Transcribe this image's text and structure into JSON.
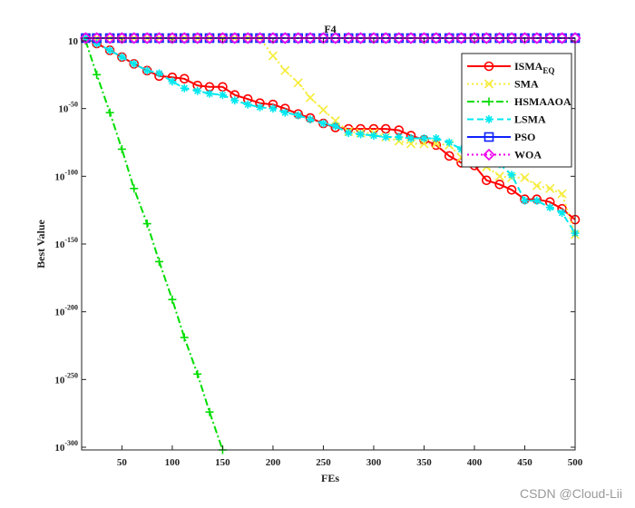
{
  "watermark": "CSDN @Cloud-Lii",
  "chart_data": {
    "type": "line",
    "title": "F4",
    "xlabel": "FEs",
    "ylabel": "Best Value",
    "x_ticks": [
      50,
      100,
      150,
      200,
      250,
      300,
      350,
      400,
      450,
      500
    ],
    "xlim": [
      10,
      500
    ],
    "y_scale": "log10",
    "ylim_exp": [
      -300,
      0
    ],
    "y_ticks": [
      {
        "exp": 0,
        "label": "10"
      },
      {
        "exp": -50,
        "label": "10",
        "sup": "-50"
      },
      {
        "exp": -100,
        "label": "10",
        "sup": "-100"
      },
      {
        "exp": -150,
        "label": "10",
        "sup": "-150"
      },
      {
        "exp": -200,
        "label": "10",
        "sup": "-200"
      },
      {
        "exp": -250,
        "label": "10",
        "sup": "-250"
      },
      {
        "exp": -300,
        "label": "10",
        "sup": "-300"
      }
    ],
    "legend_position": "top-right",
    "series": [
      {
        "name": "ISMA",
        "sub": "EQ",
        "color": "#ff0000",
        "marker": "circle",
        "dash": "solid",
        "x": [
          14,
          25,
          38,
          50,
          62,
          75,
          87,
          100,
          112,
          125,
          137,
          150,
          162,
          175,
          187,
          200,
          212,
          225,
          237,
          250,
          262,
          275,
          287,
          300,
          312,
          325,
          337,
          350,
          362,
          375,
          387,
          400,
          412,
          425,
          437,
          450,
          462,
          475,
          487,
          500
        ],
        "y": [
          2,
          -2,
          -7,
          -12,
          -17,
          -22,
          -26,
          -27,
          -28,
          -33,
          -34,
          -34,
          -40,
          -43,
          -46,
          -47,
          -50,
          -54,
          -57,
          -61,
          -64,
          -65,
          -65,
          -65,
          -65,
          -66,
          -70,
          -73,
          -77,
          -85,
          -90,
          -92,
          -103,
          -106,
          -110,
          -117,
          -117,
          -119,
          -124,
          -132
        ]
      },
      {
        "name": "SMA",
        "color": "#f5ec3a",
        "marker": "x",
        "dash": "dotted",
        "x": [
          14,
          25,
          38,
          50,
          62,
          75,
          87,
          100,
          112,
          125,
          137,
          150,
          162,
          175,
          187,
          200,
          212,
          225,
          237,
          250,
          262,
          275,
          287,
          300,
          312,
          325,
          337,
          350,
          362,
          375,
          387,
          400,
          412,
          425,
          437,
          450,
          462,
          475,
          487,
          500
        ],
        "y": [
          2,
          2,
          2,
          2,
          2,
          2,
          2,
          2,
          2,
          2,
          2,
          2,
          2,
          2,
          2,
          -11,
          -22,
          -31,
          -42,
          -51,
          -59,
          -67,
          -68,
          -68,
          -71,
          -74,
          -76,
          -76,
          -76,
          -77,
          -86,
          -87,
          -93,
          -100,
          -101,
          -101,
          -107,
          -109,
          -113,
          -143
        ]
      },
      {
        "name": "HSMAAOA",
        "color": "#00dd00",
        "marker": "plus",
        "dash": "dashdot",
        "x": [
          14,
          25,
          38,
          50,
          62,
          75,
          87,
          100,
          112,
          125,
          137,
          150
        ],
        "y": [
          0,
          -25,
          -53,
          -80,
          -109,
          -135,
          -163,
          -191,
          -219,
          -246,
          -274,
          -302
        ]
      },
      {
        "name": "LSMA",
        "color": "#00e8f0",
        "marker": "asterisk",
        "dash": "dashed",
        "x": [
          14,
          25,
          38,
          50,
          62,
          75,
          87,
          100,
          112,
          125,
          137,
          150,
          162,
          175,
          187,
          200,
          212,
          225,
          237,
          250,
          262,
          275,
          287,
          300,
          312,
          325,
          337,
          350,
          362,
          375,
          387,
          400,
          412,
          425,
          437,
          450,
          462,
          475,
          487,
          500
        ],
        "y": [
          2,
          -2,
          -7,
          -12,
          -17,
          -22,
          -24,
          -30,
          -35,
          -37,
          -39,
          -40,
          -44,
          -47,
          -49,
          -50,
          -53,
          -55,
          -58,
          -61,
          -63,
          -68,
          -69,
          -70,
          -71,
          -71,
          -72,
          -72,
          -72,
          -75,
          -80,
          -85,
          -88,
          -91,
          -99,
          -118,
          -118,
          -123,
          -127,
          -142
        ]
      },
      {
        "name": "PSO",
        "color": "#1020ff",
        "marker": "square",
        "dash": "solid",
        "x": [
          14,
          25,
          38,
          50,
          62,
          75,
          87,
          100,
          112,
          125,
          137,
          150,
          162,
          175,
          187,
          200,
          212,
          225,
          237,
          250,
          262,
          275,
          287,
          300,
          312,
          325,
          337,
          350,
          362,
          375,
          387,
          400,
          412,
          425,
          437,
          450,
          462,
          475,
          487,
          500
        ],
        "y": [
          2,
          2,
          2,
          2,
          2,
          2,
          2,
          2,
          2,
          2,
          2,
          2,
          2,
          2,
          2,
          2,
          2,
          2,
          2,
          2,
          2,
          2,
          2,
          2,
          2,
          2,
          2,
          2,
          2,
          2,
          2,
          2,
          2,
          2,
          2,
          2,
          2,
          2,
          2,
          2
        ]
      },
      {
        "name": "WOA",
        "color": "#ee00ee",
        "marker": "diamond",
        "dash": "dotted",
        "x": [
          14,
          25,
          38,
          50,
          62,
          75,
          87,
          100,
          112,
          125,
          137,
          150,
          162,
          175,
          187,
          200,
          212,
          225,
          237,
          250,
          262,
          275,
          287,
          300,
          312,
          325,
          337,
          350,
          362,
          375,
          387,
          400,
          412,
          425,
          437,
          450,
          462,
          475,
          487,
          500
        ],
        "y": [
          2,
          2,
          2,
          2,
          2,
          2,
          2,
          2,
          2,
          2,
          2,
          2,
          2,
          2,
          2,
          2,
          2,
          2,
          2,
          2,
          2,
          2,
          2,
          2,
          2,
          2,
          2,
          2,
          2,
          2,
          2,
          2,
          2,
          2,
          2,
          2,
          2,
          2,
          2,
          2
        ]
      }
    ]
  }
}
